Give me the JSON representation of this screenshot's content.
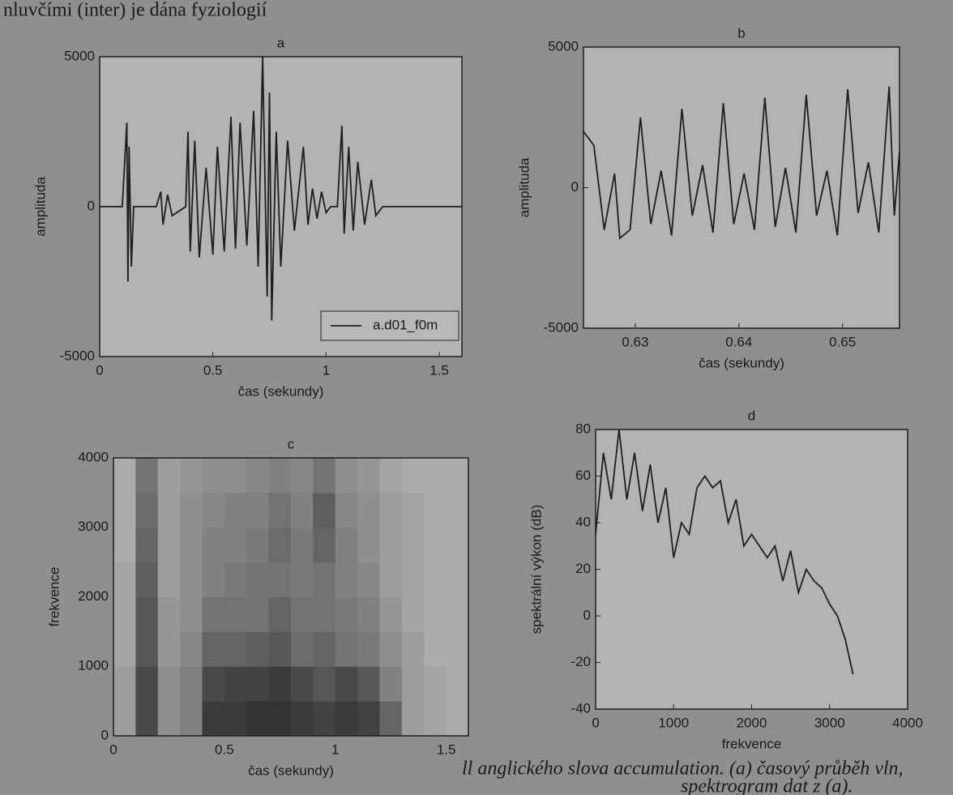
{
  "page_text": {
    "top_line": "nluvčími (inter) je dána fyziologií",
    "caption_line_1": "ll anglického slova accumulation. (a) časový průběh vln,",
    "caption_line_2": "spektrogram dat z (a)."
  },
  "chart_data": [
    {
      "type": "line",
      "title": "a",
      "xlabel": "čas (sekundy)",
      "ylabel": "amplituda",
      "xlim": [
        0,
        1.6
      ],
      "xticks": [
        0,
        0.5,
        1,
        1.5
      ],
      "ylim": [
        -5000,
        5000
      ],
      "yticks": [
        -5000,
        0,
        5000
      ],
      "legend": "lower right",
      "x": [
        0,
        0.1,
        0.12,
        0.125,
        0.13,
        0.14,
        0.15,
        0.25,
        0.27,
        0.28,
        0.3,
        0.32,
        0.38,
        0.39,
        0.4,
        0.42,
        0.44,
        0.47,
        0.5,
        0.52,
        0.55,
        0.58,
        0.6,
        0.62,
        0.65,
        0.68,
        0.7,
        0.72,
        0.74,
        0.75,
        0.76,
        0.78,
        0.8,
        0.83,
        0.86,
        0.9,
        0.92,
        0.94,
        0.96,
        0.98,
        1.0,
        1.02,
        1.05,
        1.07,
        1.08,
        1.1,
        1.12,
        1.14,
        1.17,
        1.2,
        1.22,
        1.25,
        1.6
      ],
      "series": [
        {
          "name": "a.d01_f0m",
          "color": "#1e1e1e",
          "values": [
            0,
            0,
            2800,
            -2500,
            2000,
            -2000,
            0,
            0,
            500,
            -600,
            400,
            -300,
            0,
            2500,
            -1500,
            2200,
            -1700,
            1300,
            -1600,
            2000,
            -1500,
            3000,
            -1400,
            2800,
            -1300,
            3200,
            -2000,
            5000,
            -3000,
            3800,
            -3800,
            2500,
            -2000,
            2200,
            -800,
            2000,
            -600,
            600,
            -400,
            500,
            -200,
            0,
            0,
            2700,
            -900,
            2000,
            -800,
            1500,
            -600,
            900,
            -300,
            0,
            0
          ]
        }
      ]
    },
    {
      "type": "line",
      "title": "b",
      "xlabel": "čas (sekundy)",
      "ylabel": "amplituda",
      "xlim": [
        0.625,
        0.6555
      ],
      "xticks": [
        0.63,
        0.64,
        0.65
      ],
      "ylim": [
        -5000,
        5000
      ],
      "yticks": [
        -5000,
        0,
        5000
      ],
      "color": "#1e1e1e",
      "x": [
        0.625,
        0.626,
        0.627,
        0.628,
        0.6285,
        0.6295,
        0.6305,
        0.6315,
        0.6325,
        0.6335,
        0.6345,
        0.6355,
        0.6365,
        0.6375,
        0.6385,
        0.6395,
        0.6405,
        0.6415,
        0.6425,
        0.6435,
        0.6445,
        0.6455,
        0.6465,
        0.6475,
        0.6485,
        0.6495,
        0.6505,
        0.6515,
        0.6525,
        0.6535,
        0.6545,
        0.655,
        0.6555
      ],
      "values": [
        2000,
        1500,
        -1500,
        500,
        -1800,
        -1500,
        2500,
        -1300,
        600,
        -1700,
        2800,
        -1000,
        800,
        -1600,
        3000,
        -1300,
        500,
        -1500,
        3200,
        -1400,
        700,
        -1600,
        3300,
        -1000,
        600,
        -1700,
        3500,
        -900,
        900,
        -1600,
        3600,
        -1000,
        1300
      ]
    },
    {
      "type": "heatmap",
      "title": "c",
      "xlabel": "čas (sekundy)",
      "ylabel": "frekvence",
      "xlim": [
        0,
        1.6
      ],
      "xticks": [
        0,
        0.5,
        1,
        1.5
      ],
      "ylim": [
        0,
        4000
      ],
      "yticks": [
        0,
        1000,
        2000,
        3000,
        4000
      ],
      "x": [
        0.05,
        0.15,
        0.25,
        0.35,
        0.45,
        0.55,
        0.65,
        0.75,
        0.85,
        0.95,
        1.05,
        1.15,
        1.25,
        1.35,
        1.45,
        1.55
      ],
      "y": [
        250,
        750,
        1250,
        1750,
        2250,
        2750,
        3250,
        3750
      ],
      "values": [
        [
          0.2,
          0.8,
          0.3,
          0.4,
          0.9,
          0.9,
          0.95,
          0.95,
          0.9,
          0.85,
          0.9,
          0.85,
          0.6,
          0.2,
          0.15,
          0.1
        ],
        [
          0.2,
          0.8,
          0.3,
          0.4,
          0.8,
          0.85,
          0.85,
          0.9,
          0.8,
          0.7,
          0.8,
          0.7,
          0.4,
          0.2,
          0.15,
          0.1
        ],
        [
          0.15,
          0.7,
          0.25,
          0.35,
          0.6,
          0.6,
          0.65,
          0.7,
          0.55,
          0.6,
          0.5,
          0.45,
          0.3,
          0.2,
          0.1,
          0.1
        ],
        [
          0.15,
          0.7,
          0.25,
          0.3,
          0.5,
          0.5,
          0.5,
          0.6,
          0.5,
          0.5,
          0.45,
          0.4,
          0.25,
          0.15,
          0.1,
          0.1
        ],
        [
          0.15,
          0.65,
          0.2,
          0.3,
          0.4,
          0.45,
          0.5,
          0.5,
          0.45,
          0.5,
          0.4,
          0.35,
          0.2,
          0.15,
          0.1,
          0.1
        ],
        [
          0.1,
          0.6,
          0.2,
          0.3,
          0.4,
          0.4,
          0.45,
          0.55,
          0.45,
          0.6,
          0.4,
          0.3,
          0.2,
          0.15,
          0.1,
          0.1
        ],
        [
          0.1,
          0.55,
          0.2,
          0.3,
          0.35,
          0.4,
          0.4,
          0.5,
          0.4,
          0.65,
          0.35,
          0.3,
          0.2,
          0.15,
          0.1,
          0.1
        ],
        [
          0.1,
          0.5,
          0.2,
          0.25,
          0.3,
          0.3,
          0.35,
          0.4,
          0.35,
          0.5,
          0.3,
          0.25,
          0.15,
          0.1,
          0.1,
          0.1
        ]
      ]
    },
    {
      "type": "line",
      "title": "d",
      "xlabel": "frekvence",
      "ylabel": "spektrální výkon (dB)",
      "xlim": [
        0,
        4000
      ],
      "xticks": [
        0,
        1000,
        2000,
        3000,
        4000
      ],
      "ylim": [
        -40,
        80
      ],
      "yticks": [
        -40,
        -20,
        0,
        20,
        40,
        60,
        80
      ],
      "color": "#1e1e1e",
      "x": [
        0,
        100,
        200,
        300,
        400,
        500,
        600,
        700,
        800,
        900,
        1000,
        1100,
        1200,
        1300,
        1400,
        1500,
        1600,
        1700,
        1800,
        1900,
        2000,
        2100,
        2200,
        2300,
        2400,
        2500,
        2600,
        2700,
        2800,
        2900,
        3000,
        3100,
        3200,
        3300
      ],
      "values": [
        35,
        70,
        50,
        80,
        50,
        70,
        45,
        65,
        40,
        55,
        25,
        40,
        35,
        55,
        60,
        55,
        58,
        40,
        50,
        30,
        35,
        30,
        25,
        30,
        15,
        28,
        10,
        20,
        15,
        12,
        5,
        0,
        -10,
        -25
      ]
    }
  ]
}
